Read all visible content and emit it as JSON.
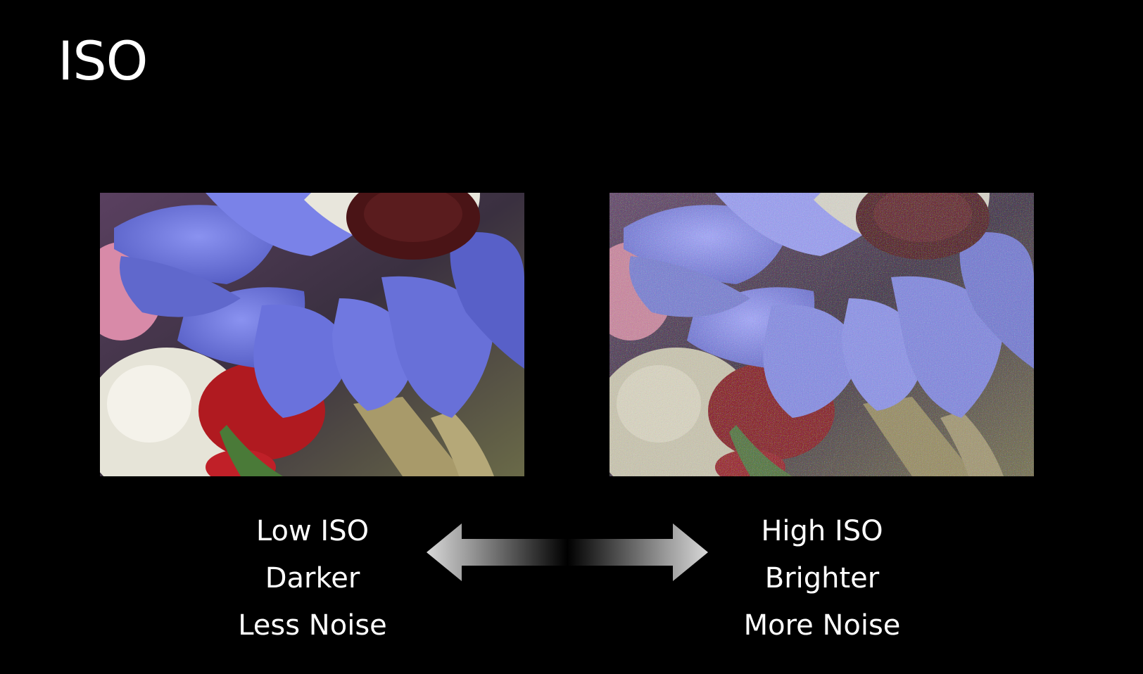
{
  "slide": {
    "title": "ISO"
  },
  "low": {
    "lines": [
      "Low ISO",
      "Darker",
      "Less Noise"
    ]
  },
  "high": {
    "lines": [
      "High ISO",
      "Brighter",
      "More Noise"
    ]
  },
  "colors": {
    "background": "#000000",
    "text": "#ffffff",
    "petal": "#6f78e0",
    "petal_shadow": "#4a52b8",
    "flower_center": "#4a1416",
    "red_flower": "#b01a20",
    "white_flower": "#e6e4d8",
    "pink_flower": "#d88aa8",
    "stem": "#a89a6a"
  },
  "icons": {
    "arrow": "double-headed-arrow-icon"
  }
}
